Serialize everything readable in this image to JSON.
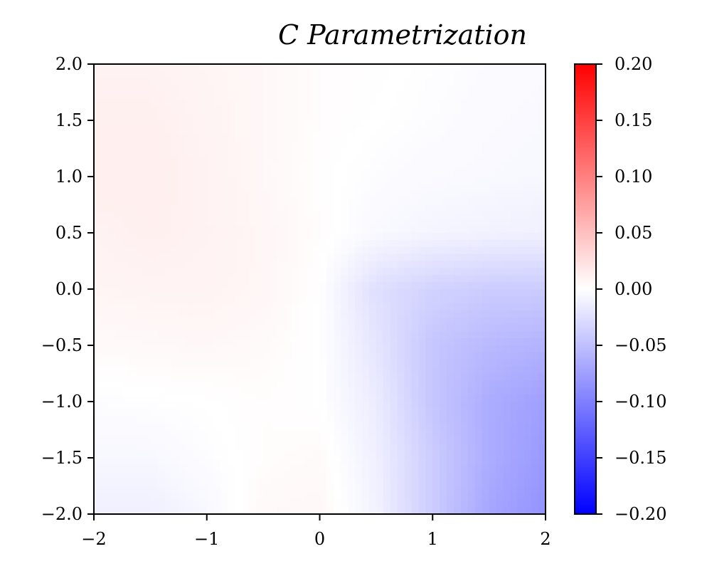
{
  "chart_data": {
    "type": "heatmap",
    "title": "C Parametrization",
    "xlabel": "",
    "ylabel": "",
    "xlim": [
      -2,
      2
    ],
    "ylim": [
      -2,
      2
    ],
    "x_ticks": [
      -2,
      -1,
      0,
      1,
      2
    ],
    "x_tick_labels": [
      "−2",
      "−1",
      "0",
      "1",
      "2"
    ],
    "y_ticks": [
      -2.0,
      -1.5,
      -1.0,
      -0.5,
      0.0,
      0.5,
      1.0,
      1.5,
      2.0
    ],
    "y_tick_labels": [
      "−2.0",
      "−1.5",
      "−1.0",
      "−0.5",
      "0.0",
      "0.5",
      "1.0",
      "1.5",
      "2.0"
    ],
    "colorbar": {
      "cmap": "bwr",
      "vmin": -0.2,
      "vmax": 0.2,
      "ticks": [
        -0.2,
        -0.15,
        -0.1,
        -0.05,
        0.0,
        0.05,
        0.1,
        0.15,
        0.2
      ],
      "tick_labels": [
        "−0.20",
        "−0.15",
        "−0.10",
        "−0.05",
        "0.00",
        "0.05",
        "0.10",
        "0.15",
        "0.20"
      ],
      "colors": {
        "low": "#0000ff",
        "mid": "#ffffff",
        "high": "#ff0000"
      }
    },
    "grid": false,
    "x": [
      -2.0,
      -1.5,
      -1.0,
      -0.5,
      0.0,
      0.5,
      1.0,
      1.5,
      2.0
    ],
    "y": [
      2.0,
      1.5,
      1.0,
      0.5,
      0.0,
      -0.5,
      -1.0,
      -1.5,
      -2.0
    ],
    "z": [
      [
        0.01,
        0.01,
        0.008,
        0.006,
        0.002,
        0.001,
        -0.001,
        -0.003,
        -0.004
      ],
      [
        0.012,
        0.012,
        0.009,
        0.006,
        0.002,
        0.0,
        -0.002,
        -0.004,
        -0.005
      ],
      [
        0.013,
        0.013,
        0.01,
        0.006,
        0.001,
        -0.002,
        -0.004,
        -0.005,
        -0.006
      ],
      [
        0.01,
        0.012,
        0.01,
        0.007,
        0.002,
        -0.005,
        -0.008,
        -0.01,
        -0.012
      ],
      [
        0.008,
        0.009,
        0.009,
        0.007,
        0.0,
        -0.025,
        -0.035,
        -0.04,
        -0.04
      ],
      [
        0.004,
        0.005,
        0.006,
        0.004,
        0.0,
        -0.02,
        -0.045,
        -0.055,
        -0.06
      ],
      [
        -0.002,
        -0.001,
        0.0,
        0.002,
        0.0,
        -0.015,
        -0.045,
        -0.065,
        -0.075
      ],
      [
        -0.006,
        -0.006,
        -0.002,
        0.002,
        0.004,
        -0.012,
        -0.04,
        -0.065,
        -0.08
      ],
      [
        -0.012,
        -0.012,
        -0.006,
        0.005,
        0.006,
        -0.01,
        -0.04,
        -0.07,
        -0.085
      ]
    ]
  }
}
